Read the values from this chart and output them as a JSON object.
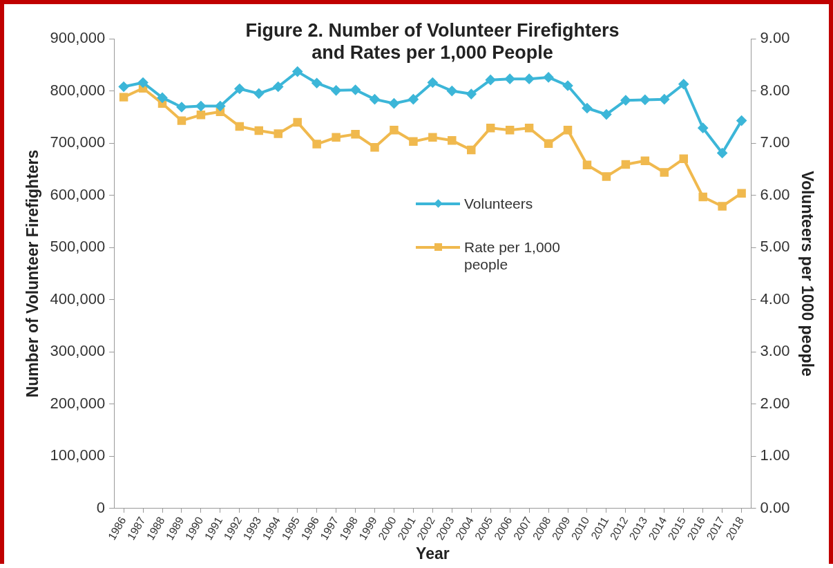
{
  "chart_data": {
    "type": "line",
    "title": "Figure 2.  Number of Volunteer Firefighters and Rates per 1,000 People",
    "xlabel": "Year",
    "ylabel": "Number of Volunteer Firefighters",
    "y2label": "Volunteers per 1000 people",
    "categories": [
      "1986",
      "1987",
      "1988",
      "1989",
      "1990",
      "1991",
      "1992",
      "1993",
      "1994",
      "1995",
      "1996",
      "1997",
      "1998",
      "1999",
      "2000",
      "2001",
      "2002",
      "2003",
      "2004",
      "2005",
      "2006",
      "2007",
      "2008",
      "2009",
      "2010",
      "2011",
      "2012",
      "2013",
      "2014",
      "2015",
      "2016",
      "2017",
      "2018"
    ],
    "series": [
      {
        "name": "Volunteers",
        "color": "#3cb6d8",
        "marker": "diamond",
        "values": [
          808000,
          816000,
          787000,
          769000,
          771000,
          771000,
          804000,
          795000,
          808000,
          837000,
          815000,
          801000,
          802000,
          784000,
          776000,
          784000,
          816000,
          800000,
          794000,
          821000,
          823000,
          823000,
          826000,
          810000,
          767000,
          755000,
          782000,
          783000,
          784000,
          813000,
          729000,
          681000,
          743000
        ]
      },
      {
        "name": "Rate per 1,000 people",
        "color": "#f0b94e",
        "marker": "square",
        "axis": "y2",
        "values": [
          7.88,
          8.05,
          7.76,
          7.43,
          7.54,
          7.6,
          7.32,
          7.24,
          7.18,
          7.4,
          6.98,
          7.11,
          7.17,
          6.92,
          7.25,
          7.03,
          7.11,
          7.05,
          6.87,
          7.29,
          7.25,
          7.29,
          6.99,
          7.25,
          6.58,
          6.36,
          6.59,
          6.66,
          6.44,
          6.7,
          5.97,
          5.79,
          6.04
        ]
      }
    ],
    "ylim": [
      0,
      900000
    ],
    "yticks": [
      {
        "value": 0,
        "label": "0"
      },
      {
        "value": 100000,
        "label": "100,000"
      },
      {
        "value": 200000,
        "label": "200,000"
      },
      {
        "value": 300000,
        "label": "300,000"
      },
      {
        "value": 400000,
        "label": "400,000"
      },
      {
        "value": 500000,
        "label": "500,000"
      },
      {
        "value": 600000,
        "label": "600,000"
      },
      {
        "value": 700000,
        "label": "700,000"
      },
      {
        "value": 800000,
        "label": "800,000"
      },
      {
        "value": 900000,
        "label": "900,000"
      }
    ],
    "y2lim": [
      0,
      9
    ],
    "y2ticks": [
      {
        "value": 0,
        "label": "0.00"
      },
      {
        "value": 1,
        "label": "1.00"
      },
      {
        "value": 2,
        "label": "2.00"
      },
      {
        "value": 3,
        "label": "3.00"
      },
      {
        "value": 4,
        "label": "4.00"
      },
      {
        "value": 5,
        "label": "5.00"
      },
      {
        "value": 6,
        "label": "6.00"
      },
      {
        "value": 7,
        "label": "7.00"
      },
      {
        "value": 8,
        "label": "8.00"
      },
      {
        "value": 9,
        "label": "9.00"
      }
    ],
    "grid": false,
    "legend": "center",
    "line_style": "solid"
  }
}
